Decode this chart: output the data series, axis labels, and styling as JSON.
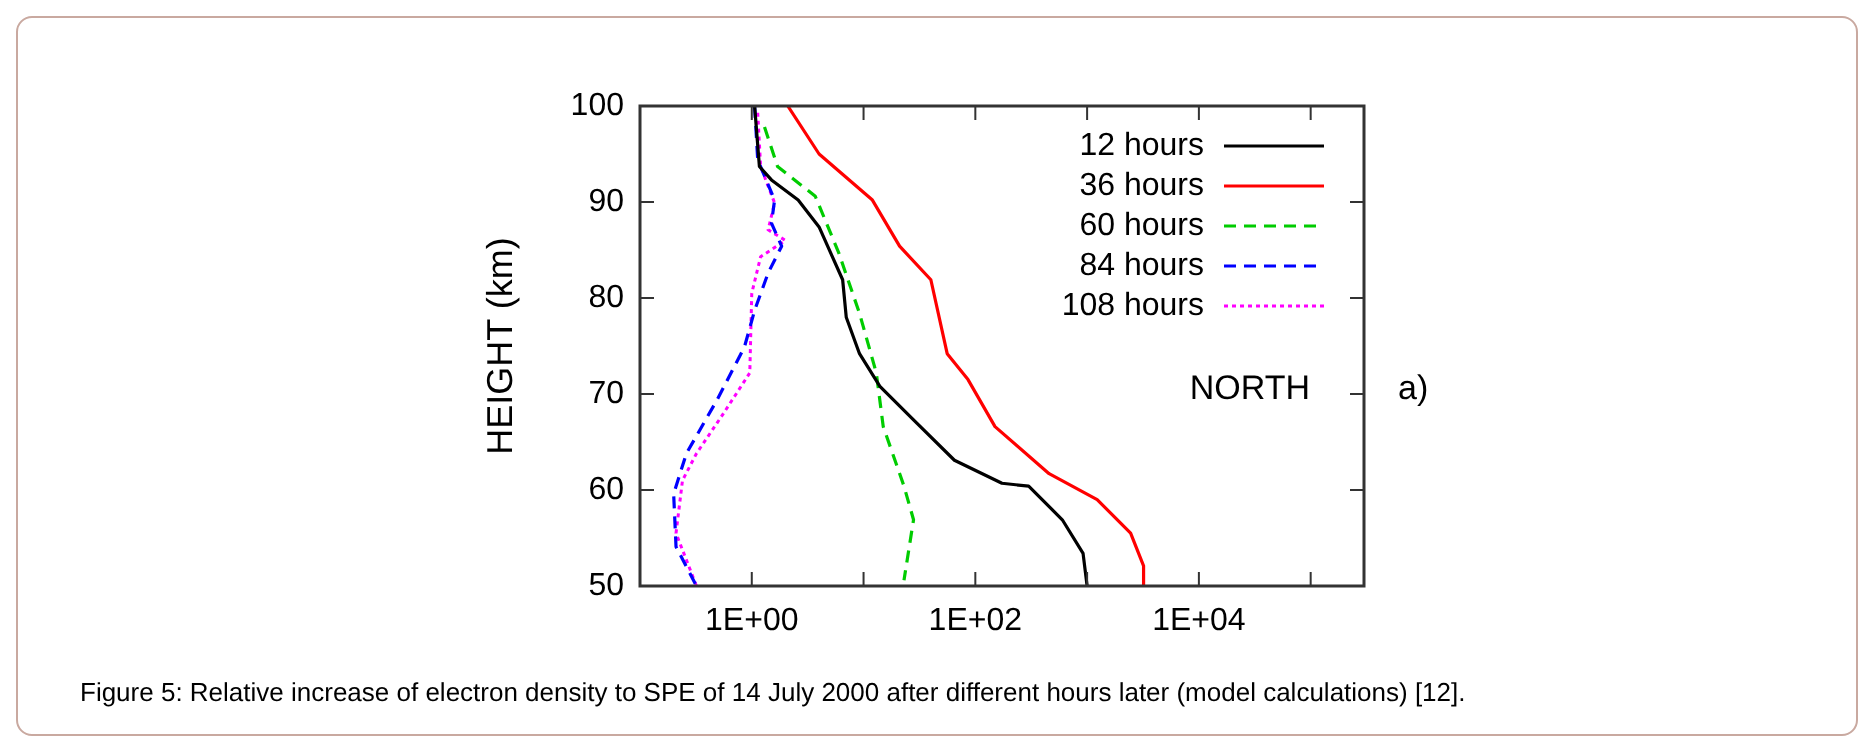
{
  "chart_data": {
    "type": "line",
    "ylabel": "HEIGHT (km)",
    "log": "x",
    "legend": "top right",
    "grid": false,
    "xlim": [
      0.1,
      300000
    ],
    "xticks": [
      {
        "value": 0.1,
        "label": null
      },
      {
        "value": 1,
        "label": "1E+00"
      },
      {
        "value": 10,
        "label": null
      },
      {
        "value": 100,
        "label": "1E+02"
      },
      {
        "value": 1000,
        "label": null
      },
      {
        "value": 10000,
        "label": "1E+04"
      },
      {
        "value": 100000,
        "label": null
      }
    ],
    "ylim": [
      50,
      100
    ],
    "yticks": [
      50,
      60,
      70,
      80,
      90,
      100
    ],
    "annotations": [
      "NORTH",
      "a)",
      "Figure 5: Relative increase of electron density to SPE of 14 July 2000 after different hours later (model calculations) [12]."
    ],
    "series": [
      {
        "name": "12 hours",
        "color": "#000000",
        "line_style": "solid",
        "x": [
          1.06,
          1.17,
          1.5,
          2.6,
          4,
          6.5,
          7,
          9.2,
          14,
          28,
          65,
          173,
          300,
          600,
          920,
          1000
        ],
        "values": [
          100,
          93.7,
          92.3,
          90.2,
          87.4,
          81.9,
          78,
          74.2,
          70.8,
          67.3,
          63.1,
          60.7,
          60.4,
          56.9,
          53.4,
          50
        ]
      },
      {
        "name": "36 hours",
        "color": "#ff0000",
        "line_style": "solid",
        "x": [
          2.1,
          4,
          12,
          21,
          40,
          56,
          86,
          150,
          457,
          1230,
          2450,
          3200,
          3200
        ],
        "values": [
          100,
          95,
          90.2,
          85.4,
          81.9,
          74.2,
          71.5,
          66.6,
          61.7,
          59,
          55.5,
          52.1,
          50
        ]
      },
      {
        "name": "60 hours",
        "color": "#00cc00",
        "line_style": "dashed",
        "x": [
          1.3,
          1.7,
          3.7,
          6,
          9.2,
          13,
          15,
          23,
          28,
          23
        ],
        "values": [
          97.8,
          93.7,
          90.6,
          84.7,
          78.4,
          72.2,
          66.6,
          60.4,
          56.9,
          50.6
        ]
      },
      {
        "name": "84 hours",
        "color": "#0000ff",
        "line_style": "dashed",
        "x": [
          1.06,
          1.13,
          1.6,
          1.5,
          1.85,
          1.4,
          1.06,
          0.86,
          0.49,
          0.26,
          0.2,
          0.21,
          0.32
        ],
        "values": [
          100,
          94.4,
          90.2,
          87.8,
          85.4,
          82.6,
          78.7,
          74.9,
          69.4,
          63.8,
          59.6,
          54.1,
          50
        ]
      },
      {
        "name": "108 hours",
        "color": "#ff00ff",
        "line_style": "dotted",
        "x": [
          1.13,
          1.2,
          1.6,
          1.4,
          2,
          1.2,
          1,
          0.96,
          0.56,
          0.32,
          0.24,
          0.21,
          0.32
        ],
        "values": [
          99.3,
          93.7,
          89.9,
          87.1,
          86,
          84.3,
          80.5,
          72.2,
          68,
          63.8,
          61,
          55.5,
          50
        ]
      }
    ]
  }
}
